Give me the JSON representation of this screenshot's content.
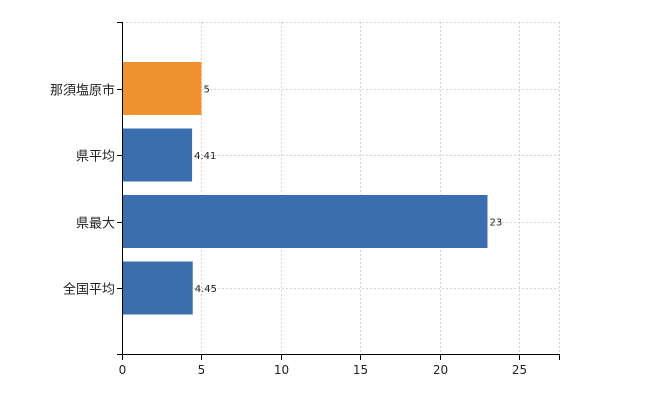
{
  "chart_data": {
    "type": "bar",
    "orientation": "horizontal",
    "categories": [
      "那須塩原市",
      "県平均",
      "県最大",
      "全国平均"
    ],
    "values": [
      5,
      4.41,
      23,
      4.45
    ],
    "data_labels": [
      "5",
      "4.41",
      "23",
      "4.45"
    ],
    "bar_colors": [
      "#f0912f",
      "#3b6eae",
      "#3b6eae",
      "#3b6eae"
    ],
    "xlim": [
      0,
      27.5
    ],
    "x_ticks": [
      0,
      5,
      10,
      15,
      20,
      25
    ],
    "x_tick_labels": [
      "0",
      "5",
      "10",
      "15",
      "20",
      "25"
    ],
    "grid": "dashed, both axes",
    "title": "",
    "xlabel": "",
    "ylabel": ""
  }
}
